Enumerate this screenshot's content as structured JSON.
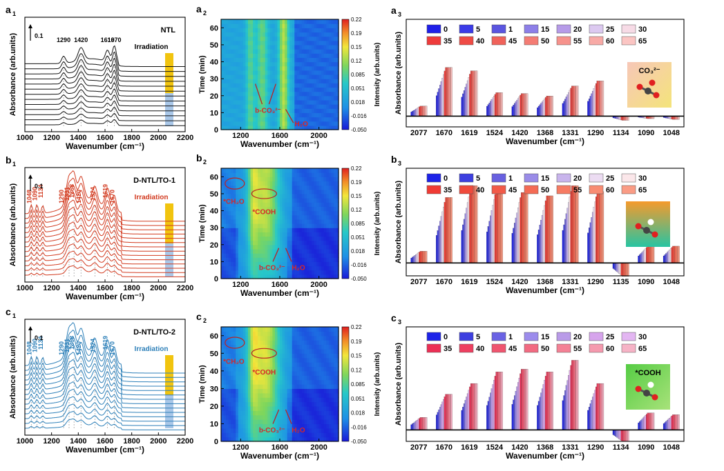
{
  "colors": {
    "ntl": "#111111",
    "dtl1": "#d23a1f",
    "dtl2": "#2c7fb8",
    "irr_top": "#f1c40f",
    "irr_bottom": "#a9c7e8",
    "red": "#d62828",
    "rowA": [
      "#1f1fe8",
      "#3b3be8",
      "#5a55e0",
      "#8d7fe8",
      "#b69be8",
      "#dcc9f0",
      "#f7dbe6",
      "#ee3b3b",
      "#ef4b45",
      "#f0625a",
      "#f47c74",
      "#f6928c",
      "#f8aaa6",
      "#fbc5c3"
    ],
    "rowB": [
      "#1d23e8",
      "#3d3fe0",
      "#6860e0",
      "#9a8ce8",
      "#c8b4ec",
      "#ecdcf2",
      "#fbe7ea",
      "#f03b34",
      "#f04a3c",
      "#f25a48",
      "#f46b55",
      "#f67b63",
      "#f88c73",
      "#fa9c85"
    ],
    "rowC": [
      "#1d23e8",
      "#3d3fe0",
      "#6a62e4",
      "#9c8cec",
      "#b99be8",
      "#d6a4ec",
      "#e3b6f2",
      "#ec2f55",
      "#ee3f60",
      "#f0556f",
      "#f26b81",
      "#f48195",
      "#f59aae",
      "#f6b3c6"
    ]
  },
  "chart_data": [
    {
      "panel": "a1",
      "type": "line",
      "sample": "NTL",
      "irradiation_label": "Irradiation",
      "xlabel": "Wavenumber (cm⁻¹)",
      "ylabel": "Absorbance (arb.units)",
      "xlim": [
        1000,
        2200
      ],
      "xticks": [
        1000,
        1200,
        1400,
        1600,
        1800,
        2000,
        2200
      ],
      "scale_bar": "0.1",
      "n_spectra": 13,
      "peaks": [
        1290,
        1420,
        1619,
        1670
      ]
    },
    {
      "panel": "b1",
      "type": "line",
      "sample": "D-NTL/TO-1",
      "irradiation_label": "Irradiation",
      "xlabel": "Wavenumber (cm⁻¹)",
      "ylabel": "Absorbance (arb.units)",
      "xlim": [
        1000,
        2200
      ],
      "xticks": [
        1000,
        1200,
        1400,
        1600,
        1800,
        2000,
        2200
      ],
      "scale_bar": "0.1",
      "n_spectra": 14,
      "peaks": [
        1048,
        1090,
        1134,
        1290,
        1331,
        1368,
        1420,
        1524,
        1619,
        1670
      ]
    },
    {
      "panel": "c1",
      "type": "line",
      "sample": "D-NTL/TO-2",
      "irradiation_label": "Irradiation",
      "xlabel": "Wavenumber (cm⁻¹)",
      "ylabel": "Absorbance (arb.units)",
      "xlim": [
        1000,
        2200
      ],
      "xticks": [
        1000,
        1200,
        1400,
        1600,
        1800,
        2000,
        2200
      ],
      "scale_bar": "0.1",
      "n_spectra": 14,
      "peaks": [
        1048,
        1090,
        1134,
        1290,
        1331,
        1368,
        1420,
        1524,
        1619,
        1670
      ]
    },
    {
      "panel": "a2",
      "type": "heatmap",
      "xlabel": "Wavenumber (cm⁻¹)",
      "ylabel": "Time (min)",
      "xlim": [
        1000,
        2200
      ],
      "xticks": [
        1200,
        1600,
        2000
      ],
      "ylim": [
        0,
        65
      ],
      "yticks": [
        0,
        10,
        20,
        30,
        40,
        50,
        60
      ],
      "colorbar_label": "Intensity (arb.units)",
      "colorbar_ticks": [
        "0.22",
        "0.19",
        "0.15",
        "0.12",
        "0.085",
        "0.051",
        "0.018",
        "-0.016",
        "-0.050"
      ],
      "annotations": [
        "b-CO₃²⁻",
        "H₂O"
      ]
    },
    {
      "panel": "b2",
      "type": "heatmap",
      "xlabel": "Wavenumber (cm⁻¹)",
      "ylabel": "Time (min)",
      "xlim": [
        1000,
        2200
      ],
      "xticks": [
        1200,
        1600,
        2000
      ],
      "ylim": [
        0,
        65
      ],
      "yticks": [
        0,
        10,
        20,
        30,
        40,
        50,
        60
      ],
      "colorbar_label": "Intensity (arb.units)",
      "colorbar_ticks": [
        "0.22",
        "0.19",
        "0.15",
        "0.12",
        "0.085",
        "0.051",
        "0.018",
        "-0.016",
        "-0.050"
      ],
      "annotations": [
        "*CH₂O",
        "*COOH",
        "b-CO₃²⁻",
        "H₂O"
      ]
    },
    {
      "panel": "c2",
      "type": "heatmap",
      "xlabel": "Wavenumber (cm⁻¹)",
      "ylabel": "Time (min)",
      "xlim": [
        1000,
        2200
      ],
      "xticks": [
        1200,
        1600,
        2000
      ],
      "ylim": [
        0,
        65
      ],
      "yticks": [
        0,
        10,
        20,
        30,
        40,
        50,
        60
      ],
      "colorbar_label": "Intensity (arb.units)",
      "colorbar_ticks": [
        "0.22",
        "0.19",
        "0.15",
        "0.12",
        "0.085",
        "0.051",
        "0.018",
        "-0.016",
        "-0.050"
      ],
      "annotations": [
        "*CH₂O",
        "*COOH",
        "b-CO₃²⁻",
        "H₂O"
      ]
    },
    {
      "panel": "a3",
      "type": "bar",
      "inset_label": "CO₃²⁻",
      "xlabel": "Wavenumber (cm⁻¹)",
      "ylabel": "Absorbance (arb.units)",
      "categories": [
        "2077",
        "1670",
        "1619",
        "1524",
        "1420",
        "1368",
        "1331",
        "1290",
        "1134",
        "1090",
        "1048"
      ],
      "legend": [
        "0",
        "5",
        "1",
        "15",
        "20",
        "25",
        "30",
        "35",
        "40",
        "45",
        "50",
        "55",
        "60",
        "65"
      ],
      "max_values": [
        0.12,
        0.58,
        0.54,
        0.28,
        0.27,
        0.24,
        0.36,
        0.42,
        -0.05,
        -0.03,
        -0.04
      ]
    },
    {
      "panel": "b3",
      "type": "bar",
      "inset_label": "",
      "xlabel": "Wavenumber (cm⁻¹)",
      "ylabel": "Absorbance (arb.units)",
      "categories": [
        "2077",
        "1670",
        "1619",
        "1524",
        "1420",
        "1368",
        "1331",
        "1290",
        "1135",
        "1090",
        "1048"
      ],
      "legend": [
        "0",
        "5",
        "1",
        "15",
        "20",
        "25",
        "30",
        "35",
        "40",
        "45",
        "50",
        "55",
        "60",
        "65"
      ],
      "max_values": [
        0.14,
        0.78,
        0.92,
        0.88,
        0.84,
        0.8,
        0.92,
        0.85,
        -0.16,
        0.2,
        0.2
      ]
    },
    {
      "panel": "c3",
      "type": "bar",
      "inset_label": "*COOH",
      "xlabel": "Wavenumber (cm⁻¹)",
      "ylabel": "Absorbance (arb.units)",
      "categories": [
        "2077",
        "1670",
        "1619",
        "1524",
        "1420",
        "1368",
        "1331",
        "1290",
        "1134",
        "1090",
        "1048"
      ],
      "legend": [
        "0",
        "5",
        "1",
        "15",
        "20",
        "25",
        "30",
        "35",
        "40",
        "45",
        "50",
        "55",
        "60",
        "65"
      ],
      "max_values": [
        0.14,
        0.4,
        0.52,
        0.65,
        0.68,
        0.65,
        0.78,
        0.52,
        -0.13,
        0.19,
        0.17
      ]
    }
  ]
}
